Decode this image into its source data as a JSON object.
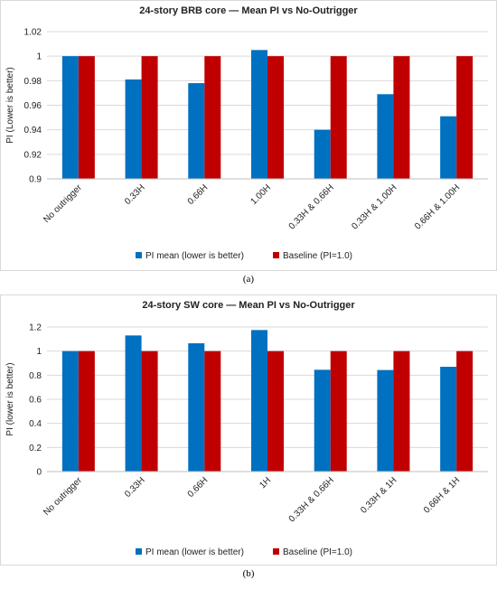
{
  "chart_data": [
    {
      "type": "bar",
      "title": "24-story BRB core — Mean PI vs No-Outrigger",
      "xlabel": "",
      "ylabel": "PI (Lower is better)",
      "ylim": [
        0.9,
        1.02
      ],
      "yticks": [
        "0.9",
        "0.92",
        "0.94",
        "0.96",
        "0.98",
        "1",
        "1.02"
      ],
      "ytick_values": [
        0.9,
        0.92,
        0.94,
        0.96,
        0.98,
        1.0,
        1.02
      ],
      "grid": true,
      "legend_position": "bottom",
      "categories": [
        "No outrigger",
        "0.33H",
        "0.66H",
        "1.00H",
        "0.33H & 0.66H",
        "0.33H & 1.00H",
        "0.66H & 1.00H"
      ],
      "series": [
        {
          "name": "PI mean (lower is better)",
          "color": "#0070c0",
          "values": [
            1.0,
            0.981,
            0.978,
            1.005,
            0.94,
            0.969,
            0.951
          ]
        },
        {
          "name": "Baseline (PI=1.0)",
          "color": "#c00000",
          "values": [
            1.0,
            1.0,
            1.0,
            1.0,
            1.0,
            1.0,
            1.0
          ]
        }
      ],
      "caption": "(a)"
    },
    {
      "type": "bar",
      "title": "24-story SW core — Mean PI vs No-Outrigger",
      "xlabel": "",
      "ylabel": "PI (lower is better)",
      "ylim": [
        0,
        1.2
      ],
      "yticks": [
        "0",
        "0.2",
        "0.4",
        "0.6",
        "0.8",
        "1",
        "1.2"
      ],
      "ytick_values": [
        0,
        0.2,
        0.4,
        0.6,
        0.8,
        1.0,
        1.2
      ],
      "grid": true,
      "legend_position": "bottom",
      "categories": [
        "No outrigger",
        "0.33H",
        "0.66H",
        "1H",
        "0.33H & 0.66H",
        "0.33H & 1H",
        "0.66H & 1H"
      ],
      "series": [
        {
          "name": "PI mean (lower is better)",
          "color": "#0070c0",
          "values": [
            1.0,
            1.13,
            1.065,
            1.175,
            0.845,
            0.843,
            0.87
          ]
        },
        {
          "name": "Baseline (PI=1.0)",
          "color": "#c00000",
          "values": [
            1.0,
            1.0,
            1.0,
            1.0,
            1.0,
            1.0,
            1.0
          ]
        }
      ],
      "caption": "(b)"
    }
  ]
}
